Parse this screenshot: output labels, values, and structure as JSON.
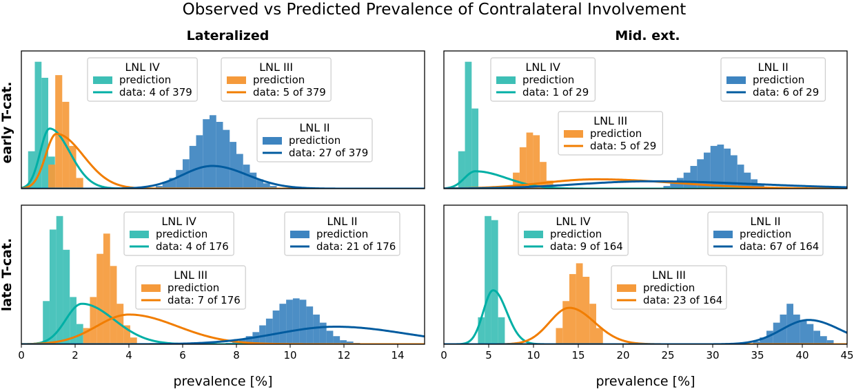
{
  "title": "Observed vs Predicted Prevalence of Contralateral Involvement",
  "colors": {
    "lnl_ii": "#005b9f",
    "lnl_ii_hist": "#3d84c0",
    "lnl_iii": "#f17d00",
    "lnl_iii_hist": "#f59a3b",
    "lnl_iv": "#00afa5",
    "lnl_iv_hist": "#3dbfb6"
  },
  "chart_data": [
    {
      "type": "histogram+line",
      "col_title": "Lateralized",
      "row_label": "early T-cat.",
      "xlabel": "",
      "xlim": [
        0,
        15
      ],
      "xticks": [],
      "series": [
        {
          "lnl": "LNL IV",
          "color": "lnl_iv",
          "hist": {
            "start": 0.25,
            "width": 0.25,
            "counts": [
              0.28,
              0.95,
              0.83,
              0.24
            ]
          },
          "curve": {
            "mode": 1.05,
            "peak": 0.45,
            "sigma_left": 0.35,
            "sigma_right": 0.75
          },
          "legend": {
            "title": "LNL IV",
            "prediction": "prediction",
            "data": "data: 4 of 379"
          },
          "legend_pos": "top-center-left"
        },
        {
          "lnl": "LNL III",
          "color": "lnl_iii",
          "hist": {
            "start": 1.0,
            "width": 0.26,
            "counts": [
              0.18,
              0.85,
              0.65,
              0.32,
              0.08
            ]
          },
          "curve": {
            "mode": 1.3,
            "peak": 0.41,
            "sigma_left": 0.4,
            "sigma_right": 1.0
          },
          "legend": {
            "title": "LNL III",
            "prediction": "prediction",
            "data": "data: 5 of 379"
          },
          "legend_pos": "top-center"
        },
        {
          "lnl": "LNL II",
          "color": "lnl_ii",
          "hist": {
            "start": 5.0,
            "width": 0.25,
            "counts": [
              0.02,
              0.05,
              0.08,
              0.14,
              0.22,
              0.32,
              0.4,
              0.52,
              0.55,
              0.5,
              0.44,
              0.35,
              0.26,
              0.18,
              0.12,
              0.07,
              0.04,
              0.02
            ]
          },
          "curve": {
            "mode": 7.1,
            "peak": 0.17,
            "sigma_left": 1.1,
            "sigma_right": 1.3
          },
          "legend": {
            "title": "LNL II",
            "prediction": "prediction",
            "data": "data: 27 of 379"
          },
          "legend_pos": "center-right"
        }
      ]
    },
    {
      "type": "histogram+line",
      "col_title": "Mid. ext.",
      "row_label": "",
      "xlabel": "",
      "xlim": [
        0,
        45
      ],
      "xticks": [],
      "series": [
        {
          "lnl": "LNL IV",
          "color": "lnl_iv",
          "hist": {
            "start": 1.6,
            "width": 0.75,
            "counts": [
              0.28,
              0.95,
              0.6
            ]
          },
          "curve": {
            "mode": 3.5,
            "peak": 0.13,
            "sigma_left": 1.2,
            "sigma_right": 3.5
          },
          "legend": {
            "title": "LNL IV",
            "prediction": "prediction",
            "data": "data: 1 of 29"
          },
          "legend_pos": "top-left"
        },
        {
          "lnl": "LNL III",
          "color": "lnl_iii",
          "hist": {
            "start": 7.7,
            "width": 0.75,
            "counts": [
              0.12,
              0.31,
              0.42,
              0.4,
              0.2,
              0.06
            ]
          },
          "curve": {
            "mode": 17,
            "peak": 0.07,
            "sigma_left": 6,
            "sigma_right": 9
          },
          "legend": {
            "title": "LNL III",
            "prediction": "prediction",
            "data": "data: 5 of 29"
          },
          "legend_pos": "center"
        },
        {
          "lnl": "LNL II",
          "color": "lnl_ii",
          "hist": {
            "start": 24.5,
            "width": 0.75,
            "counts": [
              0.02,
              0.04,
              0.08,
              0.12,
              0.17,
              0.22,
              0.27,
              0.32,
              0.33,
              0.3,
              0.25,
              0.18,
              0.12,
              0.07,
              0.03
            ]
          },
          "curve": {
            "mode": 23,
            "peak": 0.055,
            "sigma_left": 8,
            "sigma_right": 12
          },
          "legend": {
            "title": "LNL II",
            "prediction": "prediction",
            "data": "data: 6 of 29"
          },
          "legend_pos": "top-right"
        }
      ]
    },
    {
      "type": "histogram+line",
      "col_title": "",
      "row_label": "late T-cat.",
      "xlabel": "prevalence [%]",
      "xlim": [
        0,
        15
      ],
      "xticks": [
        "0",
        "2",
        "4",
        "6",
        "8",
        "10",
        "12",
        "14"
      ],
      "series": [
        {
          "lnl": "LNL IV",
          "color": "lnl_iv",
          "hist": {
            "start": 0.8,
            "width": 0.25,
            "counts": [
              0.32,
              0.85,
              0.95,
              0.7,
              0.35,
              0.15
            ]
          },
          "curve": {
            "mode": 2.25,
            "peak": 0.3,
            "sigma_left": 0.6,
            "sigma_right": 1.2
          },
          "legend": {
            "title": "LNL IV",
            "prediction": "prediction",
            "data": "data: 4 of 176"
          },
          "legend_pos": "top-center-left"
        },
        {
          "lnl": "LNL III",
          "color": "lnl_iii",
          "hist": {
            "start": 2.3,
            "width": 0.25,
            "counts": [
              0.12,
              0.35,
              0.67,
              0.82,
              0.58,
              0.3,
              0.14,
              0.05
            ]
          },
          "curve": {
            "mode": 4.0,
            "peak": 0.22,
            "sigma_left": 1.2,
            "sigma_right": 1.8
          },
          "legend": {
            "title": "LNL III",
            "prediction": "prediction",
            "data": "data: 7 of 176"
          },
          "legend_pos": "center-left"
        },
        {
          "lnl": "LNL II",
          "color": "lnl_ii",
          "hist": {
            "start": 7.6,
            "width": 0.25,
            "counts": [
              0.01,
              0.02,
              0.04,
              0.06,
              0.09,
              0.14,
              0.19,
              0.25,
              0.3,
              0.33,
              0.34,
              0.33,
              0.28,
              0.22,
              0.16,
              0.1,
              0.06,
              0.03,
              0.02,
              0.01
            ]
          },
          "curve": {
            "mode": 11.7,
            "peak": 0.13,
            "sigma_left": 2.2,
            "sigma_right": 2.6
          },
          "legend": {
            "title": "LNL II",
            "prediction": "prediction",
            "data": "data: 21 of 176"
          },
          "legend_pos": "top-right"
        }
      ]
    },
    {
      "type": "histogram+line",
      "col_title": "",
      "row_label": "",
      "xlabel": "prevalence [%]",
      "xlim": [
        0,
        45
      ],
      "xticks": [
        "0",
        "5",
        "10",
        "15",
        "20",
        "25",
        "30",
        "35",
        "40",
        "45"
      ],
      "series": [
        {
          "lnl": "LNL IV",
          "color": "lnl_iv",
          "hist": {
            "start": 3.8,
            "width": 0.75,
            "counts": [
              0.2,
              0.95,
              0.92,
              0.2
            ]
          },
          "curve": {
            "mode": 5.5,
            "peak": 0.4,
            "sigma_left": 1.1,
            "sigma_right": 1.5
          },
          "legend": {
            "title": "LNL IV",
            "prediction": "prediction",
            "data": "data: 9 of 164"
          },
          "legend_pos": "top-center-left"
        },
        {
          "lnl": "LNL III",
          "color": "lnl_iii",
          "hist": {
            "start": 12.5,
            "width": 0.75,
            "counts": [
              0.12,
              0.32,
              0.52,
              0.6,
              0.5,
              0.3,
              0.12
            ]
          },
          "curve": {
            "mode": 14.0,
            "peak": 0.27,
            "sigma_left": 2.2,
            "sigma_right": 2.8
          },
          "legend": {
            "title": "LNL III",
            "prediction": "prediction",
            "data": "data: 23 of 164"
          },
          "legend_pos": "center-right"
        },
        {
          "lnl": "LNL II",
          "color": "lnl_ii",
          "hist": {
            "start": 34.5,
            "width": 0.75,
            "counts": [
              0.02,
              0.05,
              0.1,
              0.16,
              0.22,
              0.3,
              0.22,
              0.18,
              0.15,
              0.1,
              0.06,
              0.03
            ]
          },
          "curve": {
            "mode": 40.7,
            "peak": 0.18,
            "sigma_left": 3.0,
            "sigma_right": 3.5
          },
          "legend": {
            "title": "LNL II",
            "prediction": "prediction",
            "data": "data: 67 of 164"
          },
          "legend_pos": "top-right"
        }
      ]
    }
  ]
}
